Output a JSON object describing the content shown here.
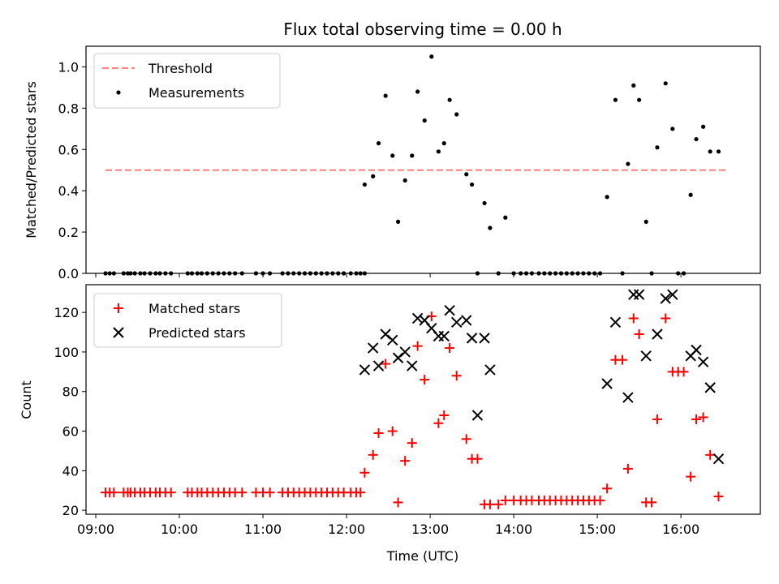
{
  "chart_data": [
    {
      "type": "scatter",
      "title": "Flux total observing time = 0.00 h",
      "ylabel": "Matched/Predicted stars",
      "xlabel": "",
      "xlim": [
        "08:53",
        "16:57"
      ],
      "ylim": [
        0,
        1.1
      ],
      "yticks": [
        0.0,
        0.2,
        0.4,
        0.6,
        0.8,
        1.0
      ],
      "ytick_labels": [
        "0.0",
        "0.2",
        "0.4",
        "0.6",
        "0.8",
        "1.0"
      ],
      "legend_position": "upper left",
      "threshold": {
        "name": "Threshold",
        "value": 0.5,
        "x_start": "09:07",
        "x_end": "16:33",
        "color": "#ff7f7f",
        "style": "dashed"
      },
      "series": [
        {
          "name": "Measurements",
          "color": "#000000",
          "marker": "dot",
          "points": [
            [
              "09:07",
              0
            ],
            [
              "09:10",
              0
            ],
            [
              "09:13",
              0
            ],
            [
              "09:20",
              0
            ],
            [
              "09:23",
              0
            ],
            [
              "09:25",
              0
            ],
            [
              "09:28",
              0
            ],
            [
              "09:32",
              0
            ],
            [
              "09:35",
              0
            ],
            [
              "09:39",
              0
            ],
            [
              "09:43",
              0
            ],
            [
              "09:46",
              0
            ],
            [
              "09:50",
              0
            ],
            [
              "09:54",
              0
            ],
            [
              "10:06",
              0
            ],
            [
              "10:09",
              0
            ],
            [
              "10:13",
              0
            ],
            [
              "10:16",
              0
            ],
            [
              "10:20",
              0
            ],
            [
              "10:24",
              0
            ],
            [
              "10:28",
              0
            ],
            [
              "10:32",
              0
            ],
            [
              "10:36",
              0
            ],
            [
              "10:40",
              0
            ],
            [
              "10:45",
              0
            ],
            [
              "10:55",
              0
            ],
            [
              "11:00",
              0
            ],
            [
              "11:05",
              0
            ],
            [
              "11:14",
              0
            ],
            [
              "11:18",
              0
            ],
            [
              "11:22",
              0
            ],
            [
              "11:26",
              0
            ],
            [
              "11:30",
              0
            ],
            [
              "11:34",
              0
            ],
            [
              "11:38",
              0
            ],
            [
              "11:42",
              0
            ],
            [
              "11:46",
              0
            ],
            [
              "11:50",
              0
            ],
            [
              "11:54",
              0
            ],
            [
              "11:58",
              0
            ],
            [
              "12:03",
              0
            ],
            [
              "12:07",
              0
            ],
            [
              "12:10",
              0
            ],
            [
              "12:13",
              0
            ],
            [
              "12:13",
              0.43
            ],
            [
              "12:19",
              0.47
            ],
            [
              "12:23",
              0.63
            ],
            [
              "12:28",
              0.86
            ],
            [
              "12:33",
              0.57
            ],
            [
              "12:37",
              0.25
            ],
            [
              "12:42",
              0.45
            ],
            [
              "12:47",
              0.57
            ],
            [
              "12:51",
              0.88
            ],
            [
              "12:56",
              0.74
            ],
            [
              "13:01",
              1.05
            ],
            [
              "13:06",
              0.59
            ],
            [
              "13:10",
              0.63
            ],
            [
              "13:14",
              0.84
            ],
            [
              "13:19",
              0.77
            ],
            [
              "13:26",
              0.48
            ],
            [
              "13:30",
              0.43
            ],
            [
              "13:34",
              0.0
            ],
            [
              "13:39",
              0.34
            ],
            [
              "13:43",
              0.22
            ],
            [
              "13:49",
              0.0
            ],
            [
              "13:54",
              0.27
            ],
            [
              "14:00",
              0
            ],
            [
              "14:05",
              0
            ],
            [
              "14:09",
              0
            ],
            [
              "14:13",
              0
            ],
            [
              "14:18",
              0
            ],
            [
              "14:22",
              0
            ],
            [
              "14:26",
              0
            ],
            [
              "14:30",
              0
            ],
            [
              "14:34",
              0
            ],
            [
              "14:38",
              0
            ],
            [
              "14:42",
              0
            ],
            [
              "14:46",
              0
            ],
            [
              "14:50",
              0
            ],
            [
              "14:54",
              0
            ],
            [
              "14:58",
              0
            ],
            [
              "15:02",
              0
            ],
            [
              "15:07",
              0.37
            ],
            [
              "15:13",
              0.84
            ],
            [
              "15:18",
              0.0
            ],
            [
              "15:22",
              0.53
            ],
            [
              "15:26",
              0.91
            ],
            [
              "15:30",
              0.84
            ],
            [
              "15:35",
              0.25
            ],
            [
              "15:39",
              0.0
            ],
            [
              "15:43",
              0.61
            ],
            [
              "15:49",
              0.92
            ],
            [
              "15:54",
              0.7
            ],
            [
              "15:58",
              0.0
            ],
            [
              "16:02",
              0.0
            ],
            [
              "16:07",
              0.38
            ],
            [
              "16:11",
              0.65
            ],
            [
              "16:16",
              0.71
            ],
            [
              "16:21",
              0.59
            ],
            [
              "16:27",
              0.59
            ]
          ]
        }
      ]
    },
    {
      "type": "scatter",
      "title": "",
      "ylabel": "Count",
      "xlabel": "Time (UTC)",
      "xlim": [
        "08:53",
        "16:57"
      ],
      "ylim": [
        18,
        134
      ],
      "yticks": [
        20,
        40,
        60,
        80,
        100,
        120
      ],
      "ytick_labels": [
        "20",
        "40",
        "60",
        "80",
        "100",
        "120"
      ],
      "xticks": [
        "09:00",
        "10:00",
        "11:00",
        "12:00",
        "13:00",
        "14:00",
        "15:00",
        "16:00"
      ],
      "xtick_labels": [
        "09:00",
        "10:00",
        "11:00",
        "12:00",
        "13:00",
        "14:00",
        "15:00",
        "16:00"
      ],
      "legend_position": "upper left",
      "series": [
        {
          "name": "Matched stars",
          "color": "#ff0000",
          "marker": "plus",
          "points": [
            [
              "09:07",
              29
            ],
            [
              "09:10",
              29
            ],
            [
              "09:13",
              29
            ],
            [
              "09:20",
              29
            ],
            [
              "09:23",
              29
            ],
            [
              "09:25",
              29
            ],
            [
              "09:28",
              29
            ],
            [
              "09:32",
              29
            ],
            [
              "09:35",
              29
            ],
            [
              "09:39",
              29
            ],
            [
              "09:43",
              29
            ],
            [
              "09:46",
              29
            ],
            [
              "09:50",
              29
            ],
            [
              "09:54",
              29
            ],
            [
              "10:06",
              29
            ],
            [
              "10:09",
              29
            ],
            [
              "10:13",
              29
            ],
            [
              "10:16",
              29
            ],
            [
              "10:20",
              29
            ],
            [
              "10:24",
              29
            ],
            [
              "10:28",
              29
            ],
            [
              "10:32",
              29
            ],
            [
              "10:36",
              29
            ],
            [
              "10:40",
              29
            ],
            [
              "10:45",
              29
            ],
            [
              "10:55",
              29
            ],
            [
              "11:00",
              29
            ],
            [
              "11:05",
              29
            ],
            [
              "11:14",
              29
            ],
            [
              "11:18",
              29
            ],
            [
              "11:22",
              29
            ],
            [
              "11:26",
              29
            ],
            [
              "11:30",
              29
            ],
            [
              "11:34",
              29
            ],
            [
              "11:38",
              29
            ],
            [
              "11:42",
              29
            ],
            [
              "11:46",
              29
            ],
            [
              "11:50",
              29
            ],
            [
              "11:54",
              29
            ],
            [
              "11:58",
              29
            ],
            [
              "12:03",
              29
            ],
            [
              "12:07",
              29
            ],
            [
              "12:10",
              29
            ],
            [
              "12:13",
              39
            ],
            [
              "12:19",
              48
            ],
            [
              "12:23",
              59
            ],
            [
              "12:28",
              94
            ],
            [
              "12:33",
              60
            ],
            [
              "12:37",
              24
            ],
            [
              "12:42",
              45
            ],
            [
              "12:47",
              54
            ],
            [
              "12:51",
              103
            ],
            [
              "12:56",
              86
            ],
            [
              "13:01",
              118
            ],
            [
              "13:06",
              64
            ],
            [
              "13:10",
              68
            ],
            [
              "13:14",
              102
            ],
            [
              "13:19",
              88
            ],
            [
              "13:26",
              56
            ],
            [
              "13:30",
              46
            ],
            [
              "13:34",
              46
            ],
            [
              "13:39",
              23
            ],
            [
              "13:43",
              23
            ],
            [
              "13:49",
              23
            ],
            [
              "13:54",
              25
            ],
            [
              "14:00",
              25
            ],
            [
              "14:05",
              25
            ],
            [
              "14:09",
              25
            ],
            [
              "14:13",
              25
            ],
            [
              "14:18",
              25
            ],
            [
              "14:22",
              25
            ],
            [
              "14:26",
              25
            ],
            [
              "14:30",
              25
            ],
            [
              "14:34",
              25
            ],
            [
              "14:38",
              25
            ],
            [
              "14:42",
              25
            ],
            [
              "14:46",
              25
            ],
            [
              "14:50",
              25
            ],
            [
              "14:54",
              25
            ],
            [
              "14:58",
              25
            ],
            [
              "15:02",
              25
            ],
            [
              "15:07",
              31
            ],
            [
              "15:13",
              96
            ],
            [
              "15:18",
              96
            ],
            [
              "15:22",
              41
            ],
            [
              "15:26",
              117
            ],
            [
              "15:30",
              109
            ],
            [
              "15:35",
              24
            ],
            [
              "15:39",
              24
            ],
            [
              "15:43",
              66
            ],
            [
              "15:49",
              117
            ],
            [
              "15:54",
              90
            ],
            [
              "15:58",
              90
            ],
            [
              "16:02",
              90
            ],
            [
              "16:07",
              37
            ],
            [
              "16:11",
              66
            ],
            [
              "16:16",
              67
            ],
            [
              "16:21",
              48
            ],
            [
              "16:27",
              27
            ]
          ]
        },
        {
          "name": "Predicted stars",
          "color": "#000000",
          "marker": "x",
          "points": [
            [
              "12:13",
              91
            ],
            [
              "12:19",
              102
            ],
            [
              "12:23",
              93
            ],
            [
              "12:28",
              109
            ],
            [
              "12:33",
              106
            ],
            [
              "12:37",
              97
            ],
            [
              "12:42",
              100
            ],
            [
              "12:47",
              93
            ],
            [
              "12:51",
              117
            ],
            [
              "12:56",
              116
            ],
            [
              "13:01",
              112
            ],
            [
              "13:06",
              108
            ],
            [
              "13:10",
              108
            ],
            [
              "13:14",
              121
            ],
            [
              "13:19",
              115
            ],
            [
              "13:26",
              116
            ],
            [
              "13:30",
              107
            ],
            [
              "13:34",
              68
            ],
            [
              "13:39",
              107
            ],
            [
              "13:43",
              91
            ],
            [
              "15:07",
              84
            ],
            [
              "15:13",
              115
            ],
            [
              "15:22",
              77
            ],
            [
              "15:26",
              129
            ],
            [
              "15:30",
              129
            ],
            [
              "15:35",
              98
            ],
            [
              "15:43",
              109
            ],
            [
              "15:49",
              127
            ],
            [
              "15:54",
              129
            ],
            [
              "16:07",
              98
            ],
            [
              "16:11",
              101
            ],
            [
              "16:16",
              95
            ],
            [
              "16:21",
              82
            ],
            [
              "16:27",
              46
            ]
          ]
        }
      ]
    }
  ]
}
